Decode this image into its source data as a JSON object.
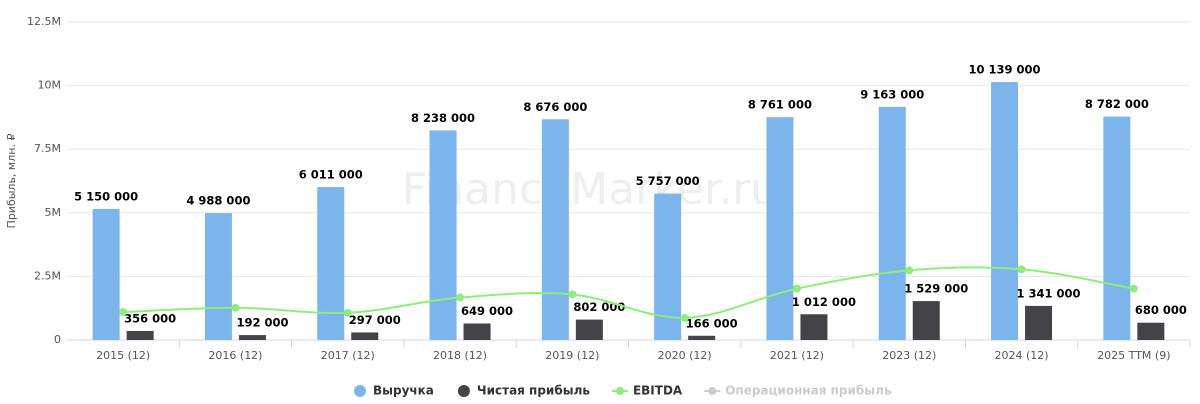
{
  "chart_data": {
    "type": "bar",
    "watermark": "FinanceMarker.ru",
    "y_label": "Прибыль, млн. ₽",
    "categories": [
      "2015 (12)",
      "2016 (12)",
      "2017 (12)",
      "2018 (12)",
      "2019 (12)",
      "2020 (12)",
      "2021 (12)",
      "2023 (12)",
      "2024 (12)",
      "2025 TTM (9)"
    ],
    "series": [
      {
        "name": "Выручка",
        "type": "bar",
        "color": "#7cb5ec",
        "values": [
          5150000,
          4988000,
          6011000,
          8238000,
          8676000,
          5757000,
          8761000,
          9163000,
          10139000,
          8782000
        ],
        "value_labels": [
          "5 150 000",
          "4 988 000",
          "6 011 000",
          "8 238 000",
          "8 676 000",
          "5 757 000",
          "8 761 000",
          "9 163 000",
          "10 139 000",
          "8 782 000"
        ]
      },
      {
        "name": "Чистая прибыль",
        "type": "bar",
        "color": "#434348",
        "values": [
          356000,
          192000,
          297000,
          649000,
          802000,
          166000,
          1012000,
          1529000,
          1341000,
          680000
        ],
        "value_labels": [
          "356 000",
          "192 000",
          "297 000",
          "649 000",
          "802 000",
          "166 000",
          "1 012 000",
          "1 529 000",
          "1 341 000",
          "680 000"
        ]
      },
      {
        "name": "EBITDA",
        "type": "line",
        "color": "#90ed7d",
        "values": [
          1100000,
          1270000,
          1070000,
          1670000,
          1790000,
          870000,
          2020000,
          2740000,
          2780000,
          2020000
        ]
      },
      {
        "name": "Операционная прибыль",
        "type": "line",
        "color": "#cccccc",
        "hidden": true,
        "values": [
          null,
          null,
          null,
          null,
          null,
          null,
          null,
          null,
          null,
          null
        ]
      }
    ],
    "ylim": [
      0,
      12500000
    ],
    "yticks": [
      0,
      {
        "value": 2500000,
        "label": "2.5M"
      },
      {
        "value": 5000000,
        "label": "5M"
      },
      {
        "value": 7500000,
        "label": "7.5M"
      },
      {
        "value": 10000000,
        "label": "10M"
      },
      {
        "value": 12500000,
        "label": "12.5M"
      }
    ],
    "grid": true
  }
}
